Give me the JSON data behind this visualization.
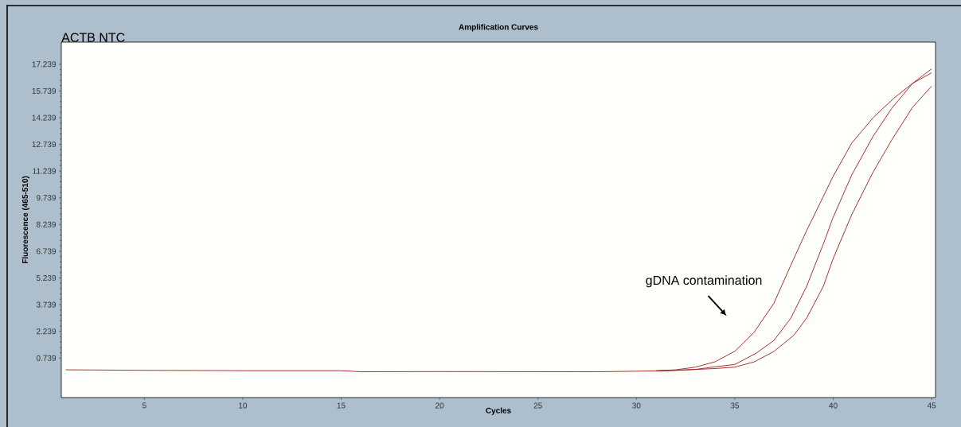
{
  "chart_data": {
    "type": "line",
    "title": "Amplification Curves",
    "xlabel": "Cycles",
    "ylabel": "Fluorescence (465-510)",
    "annotations": [
      "ACTB NTC",
      "gDNA contamination"
    ],
    "xlim": [
      0.78,
      45.2
    ],
    "ylim": [
      -1.48,
      18.48
    ],
    "xticks": [
      5,
      10,
      15,
      20,
      25,
      30,
      35,
      40,
      45
    ],
    "yticks": [
      0.739,
      2.239,
      3.739,
      5.239,
      6.739,
      8.239,
      9.739,
      11.239,
      12.739,
      14.239,
      15.739,
      17.239
    ],
    "grid": false,
    "marker": "none",
    "line_style": "solid",
    "series": [
      {
        "color": "#a01c1c",
        "x": [
          1,
          5,
          10,
          15,
          16,
          20,
          27,
          28,
          30,
          31,
          32,
          33,
          34,
          35,
          35.97,
          36.98,
          37.85,
          38.65,
          40,
          40.94,
          42.02,
          43.09,
          44.03,
          45
        ],
        "values": [
          0.08,
          0.05,
          0.03,
          0.03,
          -0.03,
          -0.02,
          -0.03,
          -0.03,
          0.0,
          0.02,
          0.08,
          0.23,
          0.53,
          1.12,
          2.17,
          3.8,
          5.96,
          7.9,
          10.95,
          12.81,
          14.23,
          15.34,
          16.16,
          16.98
        ]
      },
      {
        "color": "#a01c1c",
        "x": [
          31,
          32,
          33,
          34,
          35,
          36.1,
          36.98,
          37.85,
          38.65,
          39.5,
          40,
          40.94,
          42.02,
          42.96,
          44.03,
          45
        ],
        "values": [
          0.02,
          0.05,
          0.1,
          0.25,
          0.38,
          1.02,
          1.72,
          2.98,
          4.77,
          7.15,
          8.65,
          11.02,
          13.18,
          14.74,
          16.16,
          16.76
        ]
      },
      {
        "color": "#a01c1c",
        "x": [
          31,
          32,
          33,
          34,
          35,
          36,
          37,
          38,
          38.65,
          39.5,
          40,
          40.94,
          42.02,
          42.96,
          44.03,
          45
        ],
        "values": [
          0.02,
          0.05,
          0.1,
          0.15,
          0.23,
          0.53,
          1.12,
          2.02,
          2.98,
          4.77,
          6.33,
          8.79,
          11.17,
          12.96,
          14.82,
          16.01
        ]
      }
    ]
  }
}
